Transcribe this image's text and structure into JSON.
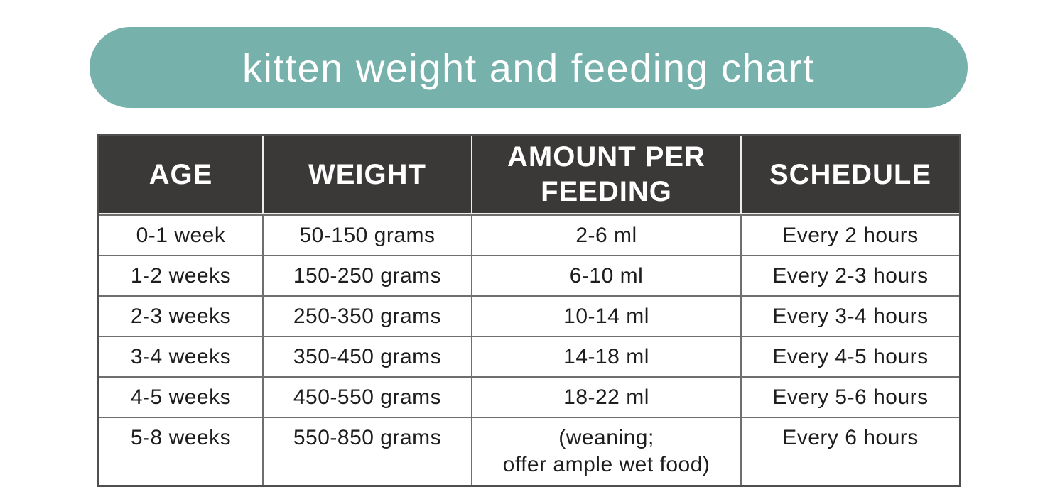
{
  "banner": {
    "title": "kitten weight and feeding chart",
    "bg_color": "#76b1ac",
    "text_color": "#ffffff"
  },
  "table": {
    "header_bg": "#3b3838",
    "header_text_color": "#ffffff",
    "grid_line_color": "#6f6f6f",
    "outer_border_color": "#4f4f4f",
    "header_divider_color": "#ededed",
    "columns": {
      "age": "AGE",
      "weight": "WEIGHT",
      "amount": "AMOUNT PER FEEDING",
      "schedule": "SCHEDULE"
    },
    "rows": [
      {
        "age": "0-1 week",
        "weight": "50-150 grams",
        "amount": "2-6 ml",
        "schedule": "Every 2 hours"
      },
      {
        "age": "1-2 weeks",
        "weight": "150-250 grams",
        "amount": "6-10 ml",
        "schedule": "Every 2-3 hours"
      },
      {
        "age": "2-3 weeks",
        "weight": "250-350 grams",
        "amount": "10-14 ml",
        "schedule": "Every 3-4 hours"
      },
      {
        "age": "3-4 weeks",
        "weight": "350-450 grams",
        "amount": "14-18 ml",
        "schedule": "Every 4-5 hours"
      },
      {
        "age": "4-5 weeks",
        "weight": "450-550 grams",
        "amount": "18-22 ml",
        "schedule": "Every 5-6 hours"
      },
      {
        "age": "5-8 weeks",
        "weight": "550-850 grams",
        "amount_line1": "(weaning;",
        "amount_line2": "offer ample wet food)",
        "schedule": "Every 6 hours"
      }
    ]
  }
}
